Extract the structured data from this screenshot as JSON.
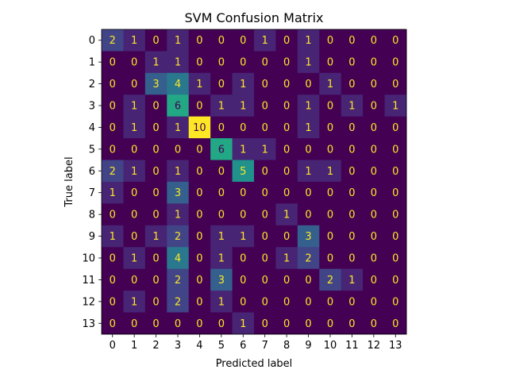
{
  "chart_data": {
    "type": "heatmap",
    "title": "SVM Confusion Matrix",
    "xlabel": "Predicted label",
    "ylabel": "True label",
    "x_categories": [
      "0",
      "1",
      "2",
      "3",
      "4",
      "5",
      "6",
      "7",
      "8",
      "9",
      "10",
      "11",
      "12",
      "13"
    ],
    "y_categories": [
      "0",
      "1",
      "2",
      "3",
      "4",
      "5",
      "6",
      "7",
      "8",
      "9",
      "10",
      "11",
      "12",
      "13"
    ],
    "matrix": [
      [
        2,
        1,
        0,
        1,
        0,
        0,
        0,
        1,
        0,
        1,
        0,
        0,
        0,
        0
      ],
      [
        0,
        0,
        1,
        1,
        0,
        0,
        0,
        0,
        0,
        1,
        0,
        0,
        0,
        0
      ],
      [
        0,
        0,
        3,
        4,
        1,
        0,
        1,
        0,
        0,
        0,
        1,
        0,
        0,
        0
      ],
      [
        0,
        1,
        0,
        6,
        0,
        1,
        1,
        0,
        0,
        1,
        0,
        1,
        0,
        1
      ],
      [
        0,
        1,
        0,
        1,
        10,
        0,
        0,
        0,
        0,
        1,
        0,
        0,
        0,
        0
      ],
      [
        0,
        0,
        0,
        0,
        0,
        6,
        1,
        1,
        0,
        0,
        0,
        0,
        0,
        0
      ],
      [
        2,
        1,
        0,
        1,
        0,
        0,
        5,
        0,
        0,
        1,
        1,
        0,
        0,
        0
      ],
      [
        1,
        0,
        0,
        3,
        0,
        0,
        0,
        0,
        0,
        0,
        0,
        0,
        0,
        0
      ],
      [
        0,
        0,
        0,
        1,
        0,
        0,
        0,
        0,
        1,
        0,
        0,
        0,
        0,
        0
      ],
      [
        1,
        0,
        1,
        2,
        0,
        1,
        1,
        0,
        0,
        3,
        0,
        0,
        0,
        0
      ],
      [
        0,
        1,
        0,
        4,
        0,
        1,
        0,
        0,
        1,
        2,
        0,
        0,
        0,
        0
      ],
      [
        0,
        0,
        0,
        2,
        0,
        3,
        0,
        0,
        0,
        0,
        2,
        1,
        0,
        0
      ],
      [
        0,
        1,
        0,
        2,
        0,
        1,
        0,
        0,
        0,
        0,
        0,
        0,
        0,
        0
      ],
      [
        0,
        0,
        0,
        0,
        0,
        0,
        1,
        0,
        0,
        0,
        0,
        0,
        0,
        0
      ]
    ],
    "value_range": [
      0,
      10
    ],
    "colormap": "viridis",
    "grid": false,
    "text_color_light": "#fde725",
    "text_color_dark": "#440154"
  }
}
